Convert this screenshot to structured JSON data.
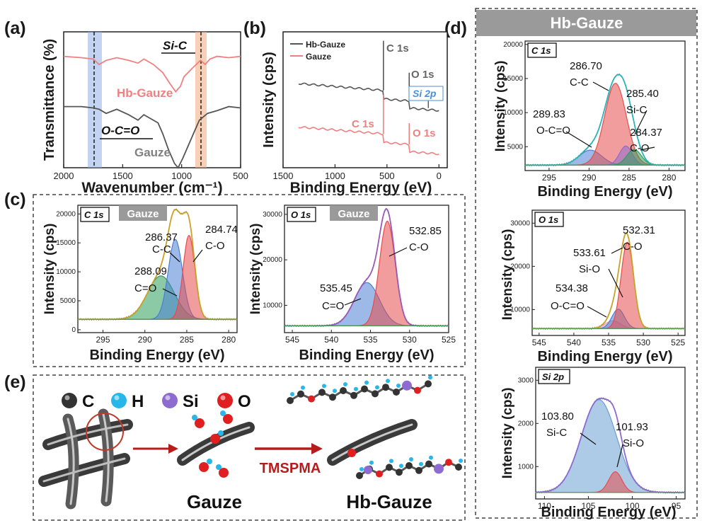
{
  "panel_labels": {
    "a": "(a)",
    "b": "(b)",
    "c": "(c)",
    "d": "(d)",
    "e": "(e)"
  },
  "d_header": "Hb-Gauze",
  "c_tag": "Gauze",
  "chart_data": [
    {
      "id": "a",
      "type": "line",
      "xlabel": "Wavenumber (cm⁻¹)",
      "ylabel": "Transmittance (%)",
      "xlim": [
        2000,
        500
      ],
      "xticks": [
        2000,
        1500,
        1000,
        500
      ],
      "series": [
        {
          "name": "Hb-Gauze",
          "color": "#f08080",
          "offset": 0.82,
          "points": [
            [
              2000,
              0.0
            ],
            [
              1850,
              0.01
            ],
            [
              1750,
              0.02
            ],
            [
              1700,
              0.06
            ],
            [
              1640,
              0.03
            ],
            [
              1550,
              0.01
            ],
            [
              1450,
              0.03
            ],
            [
              1370,
              0.05
            ],
            [
              1320,
              0.02
            ],
            [
              1240,
              0.06
            ],
            [
              1160,
              0.12
            ],
            [
              1100,
              0.2
            ],
            [
              1050,
              0.26
            ],
            [
              1010,
              0.22
            ],
            [
              980,
              0.15
            ],
            [
              900,
              0.08
            ],
            [
              840,
              0.03
            ],
            [
              800,
              0.06
            ],
            [
              760,
              0.02
            ],
            [
              700,
              0.0
            ],
            [
              600,
              0.01
            ],
            [
              500,
              0.0
            ]
          ]
        },
        {
          "name": "Gauze",
          "color": "#555555",
          "offset": 0.45,
          "points": [
            [
              2000,
              0.0
            ],
            [
              1850,
              0.0
            ],
            [
              1750,
              0.01
            ],
            [
              1700,
              0.02
            ],
            [
              1640,
              0.05
            ],
            [
              1550,
              0.02
            ],
            [
              1450,
              0.06
            ],
            [
              1370,
              0.1
            ],
            [
              1320,
              0.06
            ],
            [
              1280,
              0.08
            ],
            [
              1200,
              0.12
            ],
            [
              1160,
              0.2
            ],
            [
              1110,
              0.32
            ],
            [
              1060,
              0.42
            ],
            [
              1030,
              0.45
            ],
            [
              990,
              0.38
            ],
            [
              900,
              0.2
            ],
            [
              850,
              0.1
            ],
            [
              780,
              0.05
            ],
            [
              700,
              0.03
            ],
            [
              600,
              0.0
            ],
            [
              500,
              0.01
            ]
          ]
        }
      ],
      "annotations": [
        "Si-C",
        "O-C=O",
        "Hb-Gauze",
        "Gauze"
      ],
      "bands": [
        {
          "center": 1720,
          "color": "#8fb0e8"
        },
        {
          "center": 810,
          "color": "#f4b183"
        }
      ]
    },
    {
      "id": "b",
      "type": "line",
      "xlabel": "Binding Energy (eV)",
      "ylabel": "Intensity (cps)",
      "xlim": [
        1500,
        -80
      ],
      "xticks": [
        1500,
        1000,
        500,
        0
      ],
      "legend": [
        "Hb-Gauze",
        "Gauze"
      ],
      "series": [
        {
          "name": "Hb-Gauze",
          "color": "#555555",
          "base": 0.62
        },
        {
          "name": "Gauze",
          "color": "#f08080",
          "base": 0.3
        }
      ],
      "annotations": [
        "C 1s",
        "O 1s",
        "Si 2p",
        "C 1s",
        "O 1s"
      ]
    },
    {
      "id": "c1",
      "type": "area",
      "core": "C 1s",
      "xlabel": "Binding Energy (eV)",
      "ylabel": "Intensity (cps)",
      "xlim": [
        298,
        279
      ],
      "xticks": [
        295,
        290,
        285,
        280
      ],
      "ylim": [
        -500,
        21500
      ],
      "yticks": [
        0,
        5000,
        10000,
        15000,
        20000
      ],
      "baseline": 1800,
      "envelope_color": "#c9a227",
      "raw_color": "#6b6b6b",
      "peaks": [
        {
          "center": 288.09,
          "amp": 7500,
          "sigma": 1.6,
          "color": "#2e9e5b",
          "label": "C=O"
        },
        {
          "center": 286.37,
          "amp": 13800,
          "sigma": 0.85,
          "color": "#4a7fd4",
          "label": "C-C"
        },
        {
          "center": 284.74,
          "amp": 14500,
          "sigma": 0.7,
          "color": "#e74c4c",
          "label": "C-O"
        }
      ],
      "annotations": [
        "286.37",
        "C-C",
        "284.74",
        "C-O",
        "288.09",
        "C=O"
      ]
    },
    {
      "id": "c2",
      "type": "area",
      "core": "O 1s",
      "xlabel": "Binding Energy (eV)",
      "ylabel": "Intensity (cps)",
      "xlim": [
        546,
        525
      ],
      "xticks": [
        545,
        540,
        535,
        530,
        525
      ],
      "ylim": [
        4000,
        32000
      ],
      "yticks": [
        10000,
        20000,
        30000
      ],
      "baseline": 5500,
      "envelope_color": "#9b59b6",
      "raw_color": "#6b6b6b",
      "peaks": [
        {
          "center": 535.45,
          "amp": 9500,
          "sigma": 1.6,
          "color": "#4a7fd4",
          "label": "C=O"
        },
        {
          "center": 532.85,
          "amp": 23000,
          "sigma": 1.0,
          "color": "#e74c4c",
          "label": "C-O"
        }
      ],
      "annotations": [
        "532.85",
        "C-O",
        "535.45",
        "C=O"
      ]
    },
    {
      "id": "d1",
      "type": "area",
      "core": "C 1s",
      "xlabel": "Binding Energy (eV)",
      "ylabel": "Intensity (cps)",
      "xlim": [
        298,
        278
      ],
      "xticks": [
        295,
        290,
        285,
        280
      ],
      "ylim": [
        1500,
        20500
      ],
      "yticks": [
        5000,
        10000,
        15000,
        20000
      ],
      "baseline": 2300,
      "envelope_color": "#2bb5b8",
      "raw_color": "#6b6b6b",
      "peaks": [
        {
          "center": 289.83,
          "amp": 2200,
          "sigma": 1.4,
          "color": "#4a7fd4",
          "label": "O-C=O"
        },
        {
          "center": 286.7,
          "amp": 12000,
          "sigma": 1.35,
          "color": "#e74c4c",
          "label": "C-C"
        },
        {
          "center": 285.4,
          "amp": 2800,
          "sigma": 0.8,
          "color": "#8e6bd1",
          "label": "Si-C"
        },
        {
          "center": 284.37,
          "amp": 2300,
          "sigma": 0.9,
          "color": "#2e9e5b",
          "label": "C-O"
        }
      ],
      "annotations": [
        "286.70",
        "C-C",
        "285.40",
        "Si-C",
        "289.83",
        "O-C=O",
        "284.37",
        "C-O"
      ]
    },
    {
      "id": "d2",
      "type": "area",
      "core": "O 1s",
      "xlabel": "Binding Energy (eV)",
      "ylabel": "Intensity (cps)",
      "xlim": [
        546,
        524
      ],
      "xticks": [
        545,
        540,
        535,
        530,
        525
      ],
      "ylim": [
        4000,
        33000
      ],
      "yticks": [
        10000,
        20000,
        30000
      ],
      "baseline": 5600,
      "envelope_color": "#c9a227",
      "raw_color": "#6b6b6b",
      "peaks": [
        {
          "center": 534.38,
          "amp": 1800,
          "sigma": 1.1,
          "color": "#e0a0c0",
          "label": "O-C=O"
        },
        {
          "center": 533.61,
          "amp": 4500,
          "sigma": 0.9,
          "color": "#4a7fd4",
          "label": "Si-O"
        },
        {
          "center": 532.31,
          "amp": 20000,
          "sigma": 0.9,
          "color": "#e74c4c",
          "label": "C-O"
        }
      ],
      "annotations": [
        "532.31",
        "C-O",
        "533.61",
        "Si-O",
        "534.38",
        "O-C=O"
      ]
    },
    {
      "id": "d3",
      "type": "area",
      "core": "Si 2p",
      "xlabel": "Binding Energy (eV)",
      "ylabel": "Intensity (cps)",
      "xlim": [
        111,
        94
      ],
      "xticks": [
        110,
        105,
        100,
        95
      ],
      "ylim": [
        250,
        3300
      ],
      "yticks": [
        1000,
        2000,
        3000
      ],
      "baseline": 400,
      "envelope_color": "#8e6bd1",
      "raw_color": "#6b6b6b",
      "peaks": [
        {
          "center": 103.8,
          "amp": 2150,
          "sigma": 2.0,
          "color": "#6a9ed1",
          "label": "Si-C"
        },
        {
          "center": 101.93,
          "amp": 480,
          "sigma": 0.75,
          "color": "#e74c4c",
          "label": "Si-O"
        }
      ],
      "annotations": [
        "103.80",
        "Si-C",
        "101.93",
        "Si-O"
      ]
    }
  ],
  "schematic": {
    "legend": [
      {
        "symbol": "C",
        "color": "#333333"
      },
      {
        "symbol": "H",
        "color": "#29b6e8"
      },
      {
        "symbol": "Si",
        "color": "#8e6bd1"
      },
      {
        "symbol": "O",
        "color": "#e02020"
      }
    ],
    "arrow_label": "TMSPMA",
    "stage_labels": [
      "Gauze",
      "Hb-Gauze"
    ]
  }
}
